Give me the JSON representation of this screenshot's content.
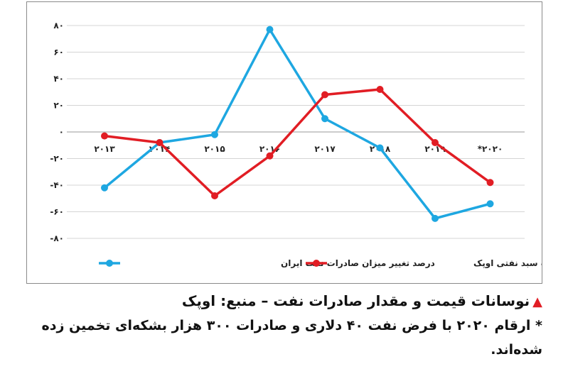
{
  "chart_data": {
    "type": "line",
    "categories": [
      "2013",
      "2014",
      "2015",
      "2016",
      "2017",
      "2018",
      "2019",
      "*2020"
    ],
    "series": [
      {
        "name": "درصد تغییر میزان صادرات نفت ایران",
        "color": "#1ea7e1",
        "values": [
          -42,
          -8,
          -2,
          77,
          10,
          -12,
          -65,
          -54
        ]
      },
      {
        "name": "درصد تغییر قیمت سبد نفتی اوپک",
        "color": "#e11d24",
        "values": [
          -3,
          -8,
          -48,
          -18,
          28,
          32,
          -8,
          -38
        ]
      }
    ],
    "ylim": [
      -80,
      80
    ],
    "yticks": [
      80,
      60,
      40,
      20,
      0,
      -20,
      -40,
      -60,
      -80
    ],
    "ytick_labels": [
      "۸۰",
      "۶۰",
      "۴۰",
      "۲۰",
      "۰",
      "-۲۰",
      "-۴۰",
      "-۶۰",
      "-۸۰"
    ],
    "xtick_labels": [
      "۲۰۱۳",
      "۲۰۱۴",
      "۲۰۱۵",
      "۲۰۱۶",
      "۲۰۱۷",
      "۲۰۱۸",
      "۲۰۱۹",
      "*۲۰۲۰"
    ],
    "grid": true,
    "legend": "bottom"
  },
  "caption": {
    "title": "نوسانات قیمت و مقدار صادرات نفت – منبع: اوپک",
    "note": "* ارقام ۲۰۲۰ با فرض نفت ۴۰ دلاری و صادرات ۳۰۰ هزار بشکه‌ای تخمین زده شده‌اند."
  }
}
